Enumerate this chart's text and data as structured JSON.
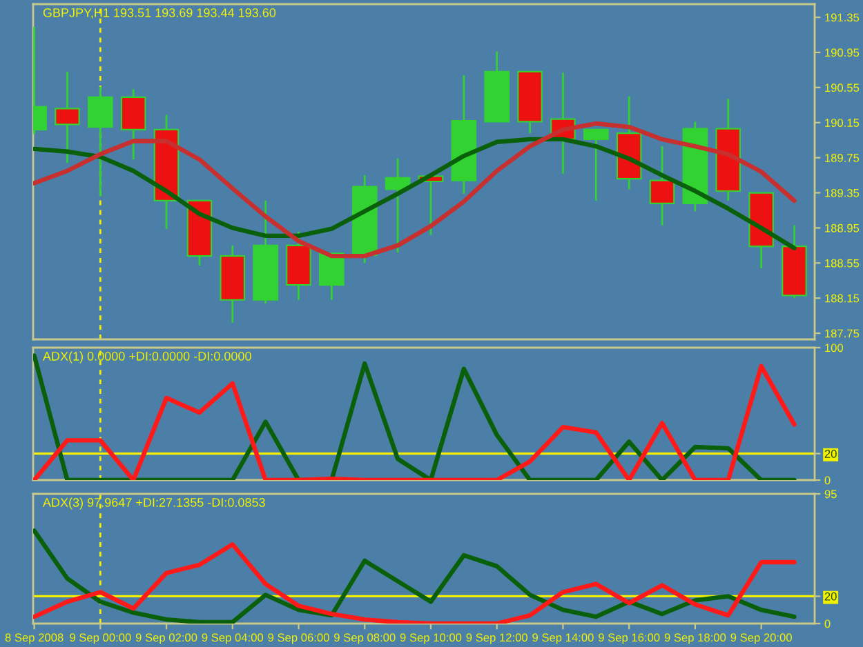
{
  "chart_data": [
    {
      "type": "candlestick",
      "title": "GBPJPY,H1 193.51 193.69 193.44 193.60",
      "x": [
        "2008-09-08T22:00",
        "2008-09-08T23:00",
        "2008-09-09T00:00",
        "2008-09-09T01:00",
        "2008-09-09T02:00",
        "2008-09-09T03:00",
        "2008-09-09T04:00",
        "2008-09-09T05:00",
        "2008-09-09T06:00",
        "2008-09-09T07:00",
        "2008-09-09T08:00",
        "2008-09-09T09:00",
        "2008-09-09T10:00",
        "2008-09-09T11:00",
        "2008-09-09T12:00",
        "2008-09-09T13:00",
        "2008-09-09T14:00",
        "2008-09-09T15:00",
        "2008-09-09T16:00",
        "2008-09-09T17:00",
        "2008-09-09T18:00",
        "2008-09-09T19:00",
        "2008-09-09T20:00",
        "2008-09-09T21:00"
      ],
      "ohlc": [
        [
          190.07,
          191.24,
          190.02,
          190.33
        ],
        [
          190.31,
          190.73,
          189.69,
          190.13
        ],
        [
          190.1,
          190.56,
          189.31,
          190.44
        ],
        [
          190.44,
          190.53,
          189.73,
          190.07
        ],
        [
          190.07,
          190.24,
          188.94,
          189.26
        ],
        [
          189.26,
          189.26,
          188.52,
          188.63
        ],
        [
          188.63,
          188.75,
          187.87,
          188.13
        ],
        [
          188.13,
          189.26,
          188.09,
          188.75
        ],
        [
          188.75,
          188.91,
          188.13,
          188.3
        ],
        [
          188.3,
          188.66,
          188.13,
          188.66
        ],
        [
          188.64,
          189.55,
          188.55,
          189.42
        ],
        [
          189.39,
          189.74,
          188.67,
          189.52
        ],
        [
          189.54,
          189.54,
          188.87,
          189.48
        ],
        [
          189.49,
          190.69,
          189.34,
          190.17
        ],
        [
          190.16,
          190.96,
          190.16,
          190.73
        ],
        [
          190.73,
          190.73,
          190.03,
          190.16
        ],
        [
          190.19,
          190.72,
          189.57,
          189.96
        ],
        [
          189.96,
          190.07,
          189.26,
          190.07
        ],
        [
          190.03,
          190.45,
          189.39,
          189.51
        ],
        [
          189.49,
          189.88,
          188.98,
          189.23
        ],
        [
          189.23,
          190.16,
          189.14,
          190.08
        ],
        [
          190.08,
          190.42,
          189.26,
          189.37
        ],
        [
          189.35,
          189.35,
          188.49,
          188.74
        ],
        [
          188.74,
          188.98,
          188.15,
          188.18
        ]
      ],
      "color": "#32d232",
      "colors": [
        "#32d232",
        "#ee1111",
        "#32d232",
        "#ee1111",
        "#ee1111",
        "#ee1111",
        "#ee1111",
        "#32d232",
        "#ee1111",
        "#32d232",
        "#32d232",
        "#32d232",
        "#ee1111",
        "#32d232",
        "#32d232",
        "#ee1111",
        "#ee1111",
        "#32d232",
        "#ee1111",
        "#ee1111",
        "#32d232",
        "#ee1111",
        "#ee1111",
        "#ee1111"
      ],
      "series": [
        {
          "type": "line",
          "color": "#0a600a",
          "values": [
            189.85,
            189.82,
            189.76,
            189.6,
            189.37,
            189.11,
            188.95,
            188.86,
            188.86,
            188.94,
            189.14,
            189.34,
            189.55,
            189.77,
            189.93,
            189.96,
            189.96,
            189.88,
            189.74,
            189.55,
            189.37,
            189.17,
            188.95,
            188.72
          ]
        },
        {
          "type": "line",
          "color": "#c83030",
          "values": [
            189.46,
            189.6,
            189.79,
            189.94,
            189.94,
            189.73,
            189.4,
            189.08,
            188.8,
            188.63,
            188.63,
            188.75,
            188.97,
            189.25,
            189.6,
            189.88,
            190.07,
            190.14,
            190.1,
            189.96,
            189.88,
            189.79,
            189.59,
            189.26
          ]
        }
      ],
      "xlim": [
        "2008-09-08T21:58",
        "2008-09-09T21:37"
      ],
      "ylim": [
        187.68,
        191.5
      ],
      "yticks": [
        191.35,
        190.95,
        190.55,
        190.15,
        189.75,
        189.35,
        188.95,
        188.55,
        188.15,
        187.75
      ],
      "ref_lines": [
        {
          "axis": "x",
          "value": "2008-09-09T00:00",
          "color": "#f2f200",
          "line_style": "dashed"
        }
      ],
      "tick_labels": "y"
    },
    {
      "type": "line",
      "title": "ADX(1) 0.0000 +DI:0.0000 -DI:0.0000",
      "x": [
        "2008-09-08T22:00",
        "2008-09-08T23:00",
        "2008-09-09T00:00",
        "2008-09-09T01:00",
        "2008-09-09T02:00",
        "2008-09-09T03:00",
        "2008-09-09T04:00",
        "2008-09-09T05:00",
        "2008-09-09T06:00",
        "2008-09-09T07:00",
        "2008-09-09T08:00",
        "2008-09-09T09:00",
        "2008-09-09T10:00",
        "2008-09-09T11:00",
        "2008-09-09T12:00",
        "2008-09-09T13:00",
        "2008-09-09T14:00",
        "2008-09-09T15:00",
        "2008-09-09T16:00",
        "2008-09-09T17:00",
        "2008-09-09T18:00",
        "2008-09-09T19:00",
        "2008-09-09T20:00",
        "2008-09-09T21:00"
      ],
      "series": [
        {
          "color": "#0a600a",
          "values": [
            94,
            0,
            0,
            0,
            0,
            0,
            0,
            44,
            0,
            0,
            88,
            16,
            0,
            84,
            34,
            0,
            0,
            0,
            29,
            0,
            25,
            24,
            0,
            0
          ]
        },
        {
          "color": "#ff1a1a",
          "values": [
            0,
            30,
            30,
            0,
            62,
            51,
            73,
            0,
            0,
            1,
            0,
            0,
            0,
            0,
            0,
            14,
            40,
            36,
            0,
            43,
            0,
            0,
            86,
            42
          ]
        }
      ],
      "xlim": [
        "2008-09-08T21:58",
        "2008-09-09T21:37"
      ],
      "ylim": [
        0,
        100
      ],
      "yticks": [
        0,
        20,
        100
      ],
      "ref_lines": [
        {
          "axis": "y",
          "value": 20,
          "color": "#f2f200"
        },
        {
          "axis": "x",
          "value": "2008-09-09T00:00",
          "color": "#f2f200",
          "line_style": "dashed"
        }
      ],
      "tick_labels": "y"
    },
    {
      "type": "line",
      "title": "ADX(3) 97.9647 +DI:27.1355 -DI:0.0853",
      "x": [
        "2008-09-08T22:00",
        "2008-09-08T23:00",
        "2008-09-09T00:00",
        "2008-09-09T01:00",
        "2008-09-09T02:00",
        "2008-09-09T03:00",
        "2008-09-09T04:00",
        "2008-09-09T05:00",
        "2008-09-09T06:00",
        "2008-09-09T07:00",
        "2008-09-09T08:00",
        "2008-09-09T09:00",
        "2008-09-09T10:00",
        "2008-09-09T11:00",
        "2008-09-09T12:00",
        "2008-09-09T13:00",
        "2008-09-09T14:00",
        "2008-09-09T15:00",
        "2008-09-09T16:00",
        "2008-09-09T17:00",
        "2008-09-09T18:00",
        "2008-09-09T19:00",
        "2008-09-09T20:00",
        "2008-09-09T21:00"
      ],
      "series": [
        {
          "color": "#0a600a",
          "values": [
            68,
            33,
            16,
            8,
            3,
            1,
            1,
            21,
            10,
            6,
            46,
            31,
            16,
            50,
            42,
            21,
            10,
            5,
            16,
            7,
            17,
            20,
            10,
            5
          ]
        },
        {
          "color": "#ff1a1a",
          "values": [
            5,
            16,
            23,
            11,
            37,
            43,
            58,
            29,
            13,
            7,
            3,
            1,
            0,
            0,
            0,
            6,
            23,
            29,
            15,
            28,
            14,
            6,
            45,
            45
          ]
        }
      ],
      "xlim": [
        "2008-09-08T21:58",
        "2008-09-09T21:37"
      ],
      "xticks": [
        {
          "value": "2008-09-08T22:00",
          "label": "8 Sep 2008"
        },
        {
          "value": "2008-09-09T00:00",
          "label": "9 Sep 00:00"
        },
        {
          "value": "2008-09-09T02:00",
          "label": "9 Sep 02:00"
        },
        {
          "value": "2008-09-09T04:00",
          "label": "9 Sep 04:00"
        },
        {
          "value": "2008-09-09T06:00",
          "label": "9 Sep 06:00"
        },
        {
          "value": "2008-09-09T08:00",
          "label": "9 Sep 08:00"
        },
        {
          "value": "2008-09-09T10:00",
          "label": "9 Sep 10:00"
        },
        {
          "value": "2008-09-09T12:00",
          "label": "9 Sep 12:00"
        },
        {
          "value": "2008-09-09T14:00",
          "label": "9 Sep 14:00"
        },
        {
          "value": "2008-09-09T16:00",
          "label": "9 Sep 16:00"
        },
        {
          "value": "2008-09-09T18:00",
          "label": "9 Sep 18:00"
        },
        {
          "value": "2008-09-09T20:00",
          "label": "9 Sep 20:00"
        }
      ],
      "ylim": [
        0,
        95
      ],
      "yticks": [
        0,
        20,
        95
      ],
      "ref_lines": [
        {
          "axis": "y",
          "value": 20,
          "color": "#f2f200"
        },
        {
          "axis": "x",
          "value": "2008-09-09T00:00",
          "color": "#f2f200",
          "line_style": "dashed"
        }
      ]
    }
  ]
}
